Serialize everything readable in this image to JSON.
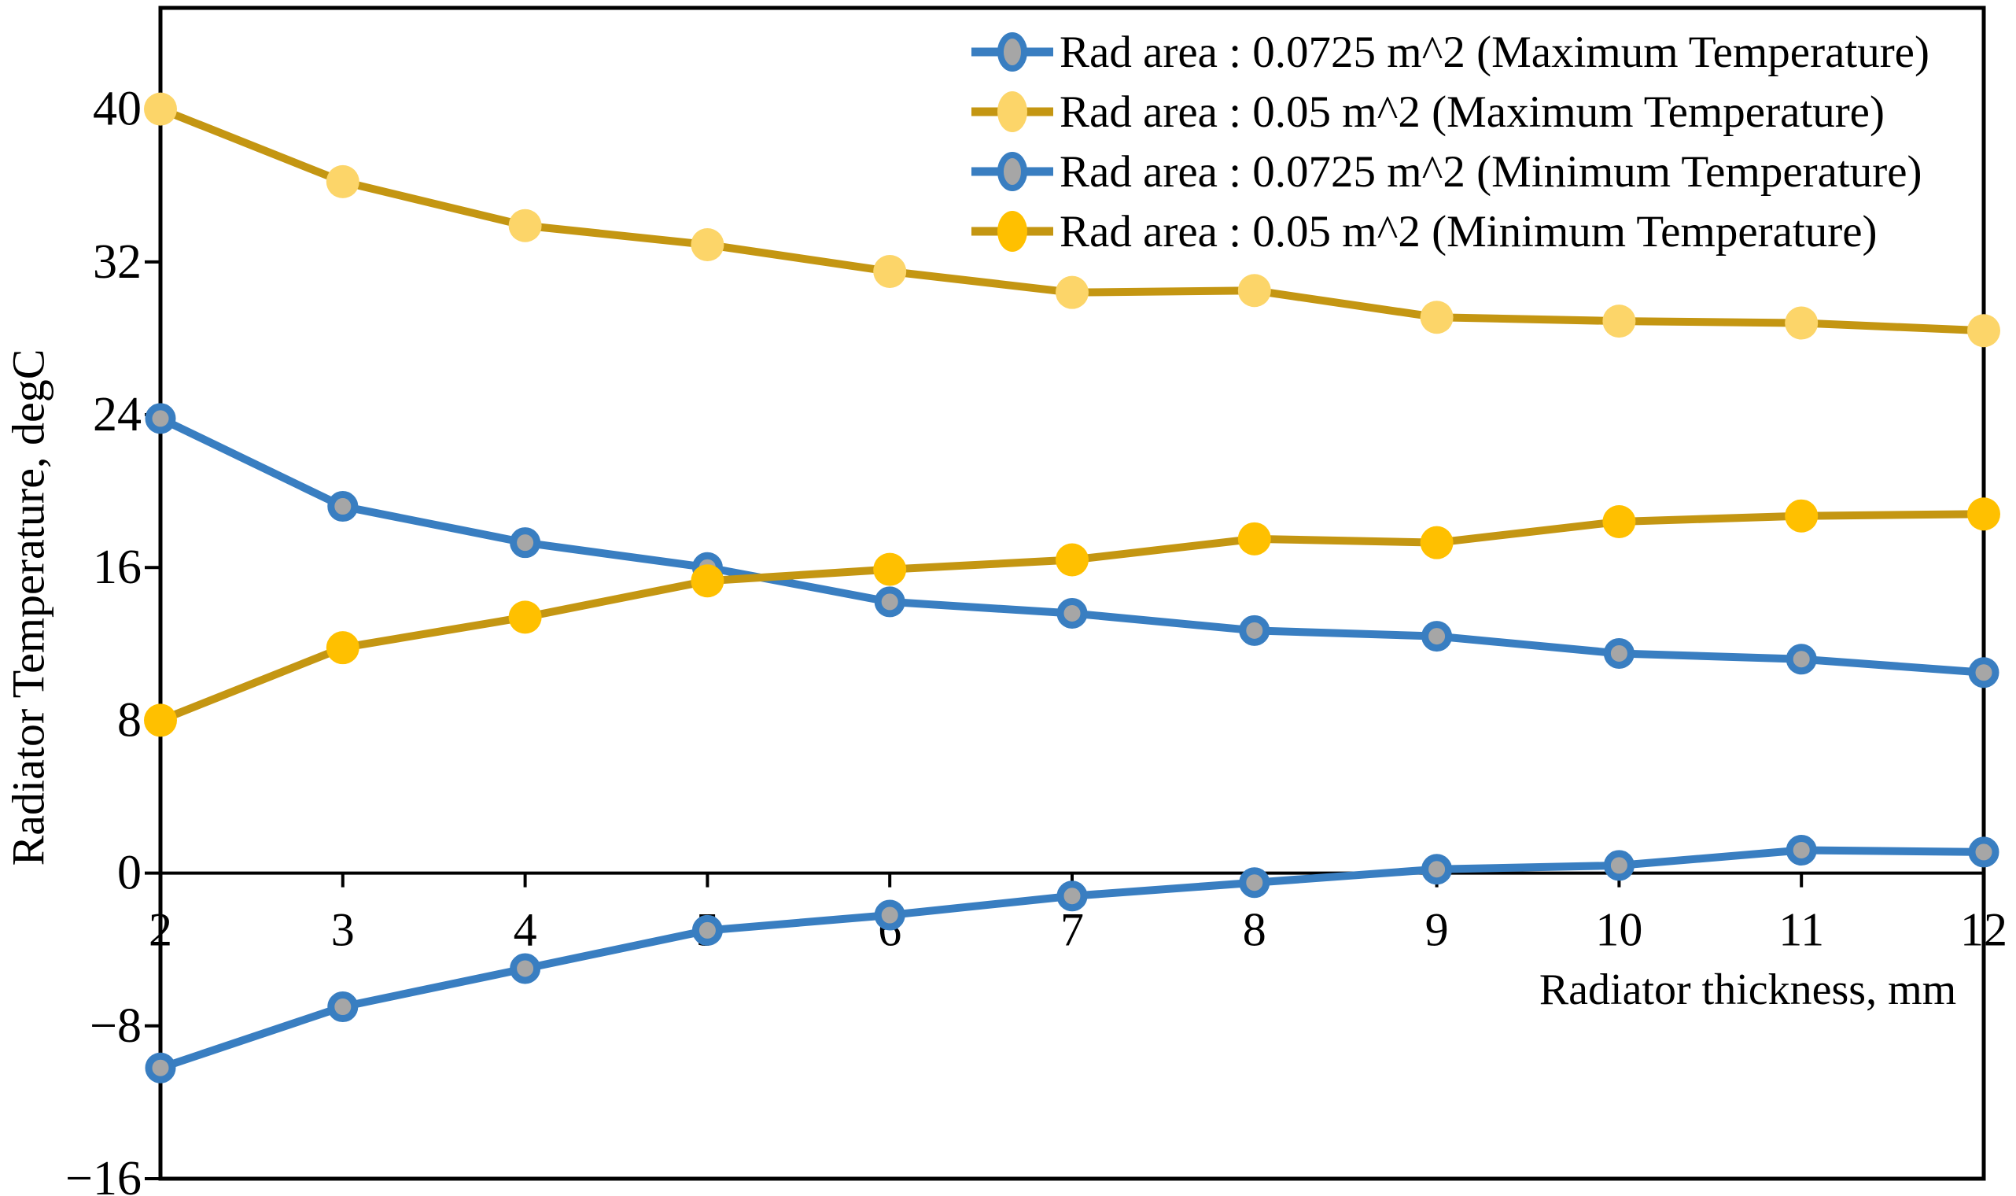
{
  "chart_data": {
    "type": "line",
    "title": "",
    "xlabel": "Radiator thickness, mm",
    "ylabel": "Radiator Temperature, degC",
    "x": [
      2,
      3,
      4,
      5,
      6,
      7,
      8,
      9,
      10,
      11,
      12
    ],
    "xticks": [
      2,
      3,
      4,
      5,
      6,
      7,
      8,
      9,
      10,
      11,
      12
    ],
    "yticks": [
      -16,
      -8,
      0,
      8,
      16,
      24,
      32,
      40
    ],
    "xlim": [
      2,
      12
    ],
    "ylim": [
      -16,
      45.3
    ],
    "grid": false,
    "legend_position": "top-right",
    "axis_color": "#000000",
    "background_color": "#ffffff",
    "series": [
      {
        "name": "Rad area : 0.0725 m^2 (Maximum Temperature)",
        "color": "#397EC1",
        "marker_fill": "#A6A6A6",
        "marker_edge": "#397EC1",
        "values": [
          23.8,
          19.2,
          17.3,
          16.0,
          14.2,
          13.6,
          12.7,
          12.4,
          11.5,
          11.2,
          10.5
        ]
      },
      {
        "name": "Rad area : 0.05 m^2 (Maximum Temperature)",
        "color": "#C49612",
        "marker_fill": "#FCD569",
        "marker_edge": "none",
        "values": [
          40.0,
          36.2,
          33.9,
          32.9,
          31.5,
          30.4,
          30.5,
          29.1,
          28.9,
          28.8,
          28.4
        ]
      },
      {
        "name": "Rad area : 0.0725 m^2 (Minimum Temperature)",
        "color": "#397EC1",
        "marker_fill": "#A6A6A6",
        "marker_edge": "#397EC1",
        "values": [
          -10.2,
          -7.0,
          -5.0,
          -3.0,
          -2.2,
          -1.2,
          -0.5,
          0.2,
          0.4,
          1.2,
          1.1
        ]
      },
      {
        "name": "Rad area : 0.05 m^2 (Minimum Temperature)",
        "color": "#C49612",
        "marker_fill": "#FFC000",
        "marker_edge": "none",
        "values": [
          8.0,
          11.8,
          13.4,
          15.3,
          15.9,
          16.4,
          17.5,
          17.3,
          18.4,
          18.7,
          18.8
        ]
      }
    ]
  }
}
